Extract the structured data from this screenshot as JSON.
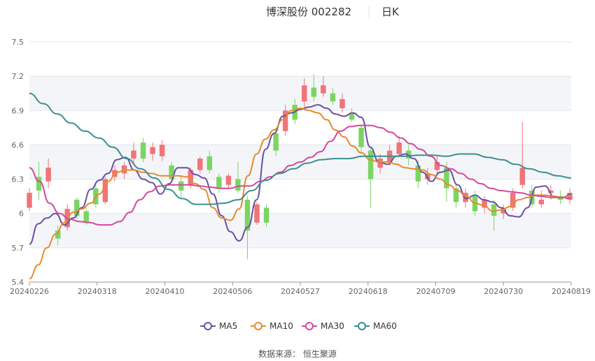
{
  "title": {
    "stock": "博深股份 002282",
    "period": "日K"
  },
  "source": "数据来源： 恒生聚源",
  "chart_data": {
    "type": "candlestick",
    "ylim": [
      5.4,
      7.5
    ],
    "y_ticks": [
      "5.4",
      "5.7",
      "6",
      "6.3",
      "6.6",
      "6.9",
      "7.2",
      "7.5"
    ],
    "x_ticks": [
      "20240226",
      "20240318",
      "20240410",
      "20240506",
      "20240527",
      "20240618",
      "20240709",
      "20240730",
      "20240819"
    ],
    "grid": true,
    "legend_position": "bottom",
    "colors": {
      "up": "#f07478",
      "down": "#7ad562",
      "ma5": "#6a4fa5",
      "ma10": "#e68a2e",
      "ma30": "#d4479c",
      "ma60": "#3a8f90"
    },
    "series": [
      {
        "name": "MA5",
        "values": [
          5.73,
          5.91,
          5.96,
          6.0,
          5.9,
          5.96,
          6.05,
          6.21,
          6.29,
          6.35,
          6.47,
          6.49,
          6.38,
          6.3,
          6.27,
          6.17,
          6.26,
          6.4,
          6.4,
          6.34,
          6.31,
          6.17,
          5.98,
          5.84,
          5.76,
          5.88,
          6.12,
          6.56,
          6.7,
          6.85,
          6.88,
          6.91,
          6.93,
          6.95,
          6.92,
          6.87,
          6.85,
          6.88,
          6.84,
          6.58,
          6.45,
          6.43,
          6.5,
          6.52,
          6.48,
          6.36,
          6.28,
          6.36,
          6.38,
          6.25,
          6.13,
          6.16,
          6.12,
          6.1,
          6.05,
          5.98,
          5.97,
          6.05,
          6.23,
          6.24,
          6.15,
          6.14,
          6.17
        ]
      },
      {
        "name": "MA10",
        "values": [
          5.43,
          5.55,
          5.7,
          5.82,
          5.92,
          6.01,
          6.04,
          6.09,
          6.17,
          6.28,
          6.36,
          6.38,
          6.38,
          6.36,
          6.35,
          6.33,
          6.33,
          6.33,
          6.32,
          6.26,
          6.21,
          6.05,
          5.96,
          5.94,
          6.04,
          6.33,
          6.52,
          6.65,
          6.73,
          6.82,
          6.9,
          6.92,
          6.9,
          6.88,
          6.82,
          6.73,
          6.67,
          6.59,
          6.53,
          6.47,
          6.45,
          6.45,
          6.43,
          6.4,
          6.39,
          6.38,
          6.34,
          6.3,
          6.25,
          6.2,
          6.15,
          6.09,
          6.07,
          6.02,
          6.03,
          6.06,
          6.12,
          6.14,
          6.16,
          6.16,
          6.15,
          6.14,
          6.16
        ]
      },
      {
        "name": "MA30",
        "values": [
          6.4,
          6.28,
          6.09,
          6.0,
          5.95,
          5.93,
          5.92,
          5.9,
          5.9,
          5.93,
          6.01,
          6.12,
          6.19,
          6.24,
          6.25,
          6.25,
          6.25,
          6.24,
          6.23,
          6.22,
          6.22,
          6.24,
          6.24,
          6.28,
          6.32,
          6.36,
          6.42,
          6.45,
          6.49,
          6.54,
          6.63,
          6.72,
          6.76,
          6.77,
          6.77,
          6.75,
          6.71,
          6.66,
          6.61,
          6.56,
          6.5,
          6.42,
          6.39,
          6.35,
          6.3,
          6.26,
          6.22,
          6.2,
          6.19,
          6.18,
          6.16,
          6.15,
          6.14,
          6.14,
          6.13
        ]
      },
      {
        "name": "MA60",
        "values": [
          7.05,
          6.96,
          6.87,
          6.79,
          6.72,
          6.66,
          6.58,
          6.48,
          6.39,
          6.31,
          6.21,
          6.13,
          6.08,
          6.08,
          6.09,
          6.12,
          6.2,
          6.29,
          6.35,
          6.39,
          6.44,
          6.47,
          6.48,
          6.48,
          6.5,
          6.5,
          6.5,
          6.5,
          6.51,
          6.51,
          6.5,
          6.52,
          6.52,
          6.49,
          6.47,
          6.43,
          6.39,
          6.36,
          6.33,
          6.31
        ]
      }
    ],
    "candles": [
      [
        6.05,
        6.18,
        6.22,
        6.02
      ],
      [
        6.32,
        6.2,
        6.45,
        6.12
      ],
      [
        6.28,
        6.4,
        6.48,
        6.22
      ],
      [
        5.85,
        5.78,
        5.9,
        5.72
      ],
      [
        5.88,
        6.04,
        6.08,
        5.85
      ],
      [
        6.12,
        5.98,
        6.14,
        5.95
      ],
      [
        6.02,
        5.92,
        6.05,
        5.9
      ],
      [
        6.22,
        6.08,
        6.25,
        6.05
      ],
      [
        6.1,
        6.3,
        6.32,
        6.08
      ],
      [
        6.32,
        6.38,
        6.42,
        6.28
      ],
      [
        6.35,
        6.42,
        6.45,
        6.3
      ],
      [
        6.48,
        6.55,
        6.62,
        6.44
      ],
      [
        6.62,
        6.48,
        6.66,
        6.45
      ],
      [
        6.52,
        6.58,
        6.62,
        6.46
      ],
      [
        6.5,
        6.6,
        6.64,
        6.46
      ],
      [
        6.42,
        6.3,
        6.45,
        6.28
      ],
      [
        6.28,
        6.2,
        6.32,
        6.14
      ],
      [
        6.25,
        6.38,
        6.4,
        6.22
      ],
      [
        6.38,
        6.48,
        6.5,
        6.35
      ],
      [
        6.5,
        6.38,
        6.55,
        6.35
      ],
      [
        6.32,
        6.22,
        6.35,
        6.18
      ],
      [
        6.25,
        6.33,
        6.35,
        6.22
      ],
      [
        6.3,
        6.2,
        6.45,
        6.18
      ],
      [
        6.12,
        5.85,
        6.15,
        5.6
      ],
      [
        5.92,
        6.08,
        6.1,
        5.9
      ],
      [
        6.05,
        5.92,
        6.08,
        5.88
      ],
      [
        6.7,
        6.55,
        6.75,
        6.5
      ],
      [
        6.72,
        6.9,
        6.95,
        6.68
      ],
      [
        6.95,
        6.82,
        7.0,
        6.78
      ],
      [
        6.98,
        7.12,
        7.18,
        6.92
      ],
      [
        7.1,
        7.02,
        7.22,
        6.98
      ],
      [
        7.05,
        7.12,
        7.2,
        7.02
      ],
      [
        7.05,
        6.98,
        7.1,
        6.95
      ],
      [
        6.92,
        7.0,
        7.05,
        6.88
      ],
      [
        6.88,
        6.82,
        6.92,
        6.8
      ],
      [
        6.75,
        6.58,
        6.78,
        6.52
      ],
      [
        6.55,
        6.3,
        6.58,
        6.05
      ],
      [
        6.4,
        6.48,
        6.52,
        6.35
      ],
      [
        6.45,
        6.55,
        6.6,
        6.42
      ],
      [
        6.52,
        6.62,
        6.68,
        6.5
      ],
      [
        6.55,
        6.48,
        6.6,
        6.42
      ],
      [
        6.42,
        6.28,
        6.46,
        6.22
      ],
      [
        6.3,
        6.35,
        6.4,
        6.25
      ],
      [
        6.38,
        6.45,
        6.5,
        6.35
      ],
      [
        6.4,
        6.22,
        6.45,
        6.1
      ],
      [
        6.22,
        6.1,
        6.25,
        6.05
      ],
      [
        6.1,
        6.18,
        6.22,
        6.05
      ],
      [
        6.15,
        6.02,
        6.2,
        5.98
      ],
      [
        6.05,
        6.12,
        6.15,
        6.0
      ],
      [
        6.08,
        5.98,
        6.12,
        5.85
      ],
      [
        6.0,
        6.05,
        6.08,
        5.95
      ],
      [
        6.05,
        6.18,
        6.22,
        6.02
      ],
      [
        6.25,
        6.4,
        6.8,
        6.22
      ],
      [
        6.2,
        6.08,
        6.25,
        6.05
      ],
      [
        6.08,
        6.12,
        6.2,
        6.05
      ],
      [
        6.18,
        6.2,
        6.25,
        6.12
      ],
      [
        6.15,
        6.12,
        6.2,
        6.08
      ],
      [
        6.12,
        6.18,
        6.22,
        6.08
      ]
    ]
  },
  "legend": [
    {
      "label": "MA5",
      "color": "#6a4fa5"
    },
    {
      "label": "MA10",
      "color": "#e68a2e"
    },
    {
      "label": "MA30",
      "color": "#d4479c"
    },
    {
      "label": "MA60",
      "color": "#3a8f90"
    }
  ]
}
